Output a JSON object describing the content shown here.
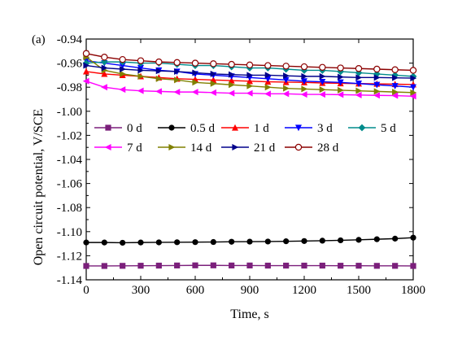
{
  "chart_data": {
    "type": "line",
    "panel_label": "(a)",
    "xlabel": "Time, s",
    "ylabel": "Open circuit potential, V/SCE",
    "xlim": [
      0,
      1800
    ],
    "ylim": [
      -1.14,
      -0.94
    ],
    "xticks": [
      0,
      300,
      600,
      900,
      1200,
      1500,
      1800
    ],
    "yticks": [
      -0.94,
      -0.96,
      -0.98,
      -1.0,
      -1.02,
      -1.04,
      -1.06,
      -1.08,
      -1.1,
      -1.12,
      -1.14
    ],
    "ytick_labels": [
      "-0.94",
      "-0.96",
      "-0.98",
      "-1.00",
      "-1.02",
      "-1.04",
      "-1.06",
      "-1.08",
      "-1.10",
      "-1.12",
      "-1.14"
    ],
    "grid": false,
    "legend_position": "middle",
    "legend_columns": 5,
    "series": [
      {
        "name": "0 d",
        "color": "#7b1f7b",
        "marker": "square",
        "x": [
          0,
          100,
          200,
          300,
          400,
          500,
          600,
          700,
          800,
          900,
          1000,
          1100,
          1200,
          1300,
          1400,
          1500,
          1600,
          1700,
          1800
        ],
        "y": [
          -1.1285,
          -1.1285,
          -1.1284,
          -1.1283,
          -1.1282,
          -1.1281,
          -1.128,
          -1.128,
          -1.1281,
          -1.1281,
          -1.1282,
          -1.1282,
          -1.1282,
          -1.1282,
          -1.1283,
          -1.1283,
          -1.1284,
          -1.1284,
          -1.1285
        ]
      },
      {
        "name": "0.5 d",
        "color": "#000000",
        "marker": "circle",
        "x": [
          0,
          100,
          200,
          300,
          400,
          500,
          600,
          700,
          800,
          900,
          1000,
          1100,
          1200,
          1300,
          1400,
          1500,
          1600,
          1700,
          1800
        ],
        "y": [
          -1.109,
          -1.109,
          -1.1092,
          -1.109,
          -1.1089,
          -1.1088,
          -1.1087,
          -1.1086,
          -1.1084,
          -1.1083,
          -1.1082,
          -1.108,
          -1.1078,
          -1.1075,
          -1.1072,
          -1.1068,
          -1.1063,
          -1.1058,
          -1.105
        ]
      },
      {
        "name": "1 d",
        "color": "#ff0000",
        "marker": "triangle-up",
        "x": [
          0,
          100,
          200,
          300,
          400,
          500,
          600,
          700,
          800,
          900,
          1000,
          1100,
          1200,
          1300,
          1400,
          1500,
          1600,
          1700,
          1800
        ],
        "y": [
          -0.967,
          -0.969,
          -0.97,
          -0.971,
          -0.972,
          -0.973,
          -0.9735,
          -0.974,
          -0.9745,
          -0.975,
          -0.9755,
          -0.9758,
          -0.976,
          -0.9765,
          -0.9768,
          -0.977,
          -0.9772,
          -0.9775,
          -0.9778
        ]
      },
      {
        "name": "3 d",
        "color": "#0000ff",
        "marker": "triangle-down",
        "x": [
          0,
          100,
          200,
          300,
          400,
          500,
          600,
          700,
          800,
          900,
          1000,
          1100,
          1200,
          1300,
          1400,
          1500,
          1600,
          1700,
          1800
        ],
        "y": [
          -0.958,
          -0.96,
          -0.962,
          -0.964,
          -0.966,
          -0.967,
          -0.969,
          -0.97,
          -0.971,
          -0.972,
          -0.973,
          -0.974,
          -0.975,
          -0.9755,
          -0.976,
          -0.977,
          -0.978,
          -0.979,
          -0.98
        ]
      },
      {
        "name": "5 d",
        "color": "#008b8b",
        "marker": "diamond",
        "x": [
          0,
          100,
          200,
          300,
          400,
          500,
          600,
          700,
          800,
          900,
          1000,
          1100,
          1200,
          1300,
          1400,
          1500,
          1600,
          1700,
          1800
        ],
        "y": [
          -0.96,
          -0.959,
          -0.959,
          -0.96,
          -0.96,
          -0.961,
          -0.962,
          -0.962,
          -0.963,
          -0.964,
          -0.964,
          -0.965,
          -0.966,
          -0.966,
          -0.967,
          -0.968,
          -0.969,
          -0.97,
          -0.971
        ]
      },
      {
        "name": "7 d",
        "color": "#ff00ff",
        "marker": "triangle-left",
        "x": [
          0,
          100,
          200,
          300,
          400,
          500,
          600,
          700,
          800,
          900,
          1000,
          1100,
          1200,
          1300,
          1400,
          1500,
          1600,
          1700,
          1800
        ],
        "y": [
          -0.975,
          -0.98,
          -0.982,
          -0.983,
          -0.9835,
          -0.984,
          -0.984,
          -0.9845,
          -0.985,
          -0.985,
          -0.9855,
          -0.9855,
          -0.986,
          -0.986,
          -0.9862,
          -0.9865,
          -0.9868,
          -0.987,
          -0.9875
        ]
      },
      {
        "name": "14 d",
        "color": "#808000",
        "marker": "triangle-right",
        "x": [
          0,
          100,
          200,
          300,
          400,
          500,
          600,
          700,
          800,
          900,
          1000,
          1100,
          1200,
          1300,
          1400,
          1500,
          1600,
          1700,
          1800
        ],
        "y": [
          -0.955,
          -0.966,
          -0.969,
          -0.971,
          -0.973,
          -0.974,
          -0.976,
          -0.977,
          -0.978,
          -0.979,
          -0.98,
          -0.981,
          -0.9815,
          -0.982,
          -0.9825,
          -0.983,
          -0.9835,
          -0.984,
          -0.9845
        ]
      },
      {
        "name": "21 d",
        "color": "#00008b",
        "marker": "triangle-right",
        "x": [
          0,
          100,
          200,
          300,
          400,
          500,
          600,
          700,
          800,
          900,
          1000,
          1100,
          1200,
          1300,
          1400,
          1500,
          1600,
          1700,
          1800
        ],
        "y": [
          -0.962,
          -0.964,
          -0.965,
          -0.966,
          -0.9665,
          -0.967,
          -0.968,
          -0.969,
          -0.9695,
          -0.97,
          -0.97,
          -0.9705,
          -0.971,
          -0.971,
          -0.9715,
          -0.972,
          -0.972,
          -0.9722,
          -0.9725
        ]
      },
      {
        "name": "28 d",
        "color": "#8b0000",
        "marker": "circle-open",
        "x": [
          0,
          100,
          200,
          300,
          400,
          500,
          600,
          700,
          800,
          900,
          1000,
          1100,
          1200,
          1300,
          1400,
          1500,
          1600,
          1700,
          1800
        ],
        "y": [
          -0.952,
          -0.955,
          -0.957,
          -0.958,
          -0.959,
          -0.9595,
          -0.96,
          -0.9605,
          -0.961,
          -0.9615,
          -0.962,
          -0.9625,
          -0.963,
          -0.9635,
          -0.964,
          -0.9645,
          -0.965,
          -0.9655,
          -0.966
        ]
      }
    ]
  }
}
